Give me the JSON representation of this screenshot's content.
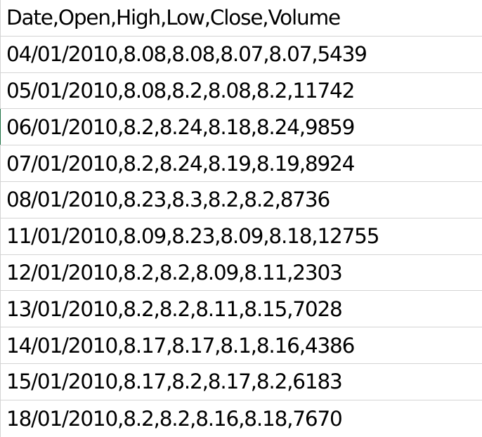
{
  "rows": [
    "Date,Open,High,Low,Close,Volume",
    "04/01/2010,8.08,8.08,8.07,8.07,5439",
    "05/01/2010,8.08,8.2,8.08,8.2,11742",
    "06/01/2010,8.2,8.24,8.18,8.24,9859",
    "07/01/2010,8.2,8.24,8.19,8.19,8924",
    "08/01/2010,8.23,8.3,8.2,8.2,8736",
    "11/01/2010,8.09,8.23,8.09,8.18,12755",
    "12/01/2010,8.2,8.2,8.09,8.11,2303",
    "13/01/2010,8.2,8.2,8.11,8.15,7028",
    "14/01/2010,8.17,8.17,8.1,8.16,4386",
    "15/01/2010,8.17,8.2,8.17,8.2,6183",
    "18/01/2010,8.2,8.2,8.16,8.18,7670"
  ],
  "colors": {
    "gridline": "#d4d4d4",
    "active_cell_border": "#217346",
    "text": "#000000",
    "background": "#ffffff"
  }
}
